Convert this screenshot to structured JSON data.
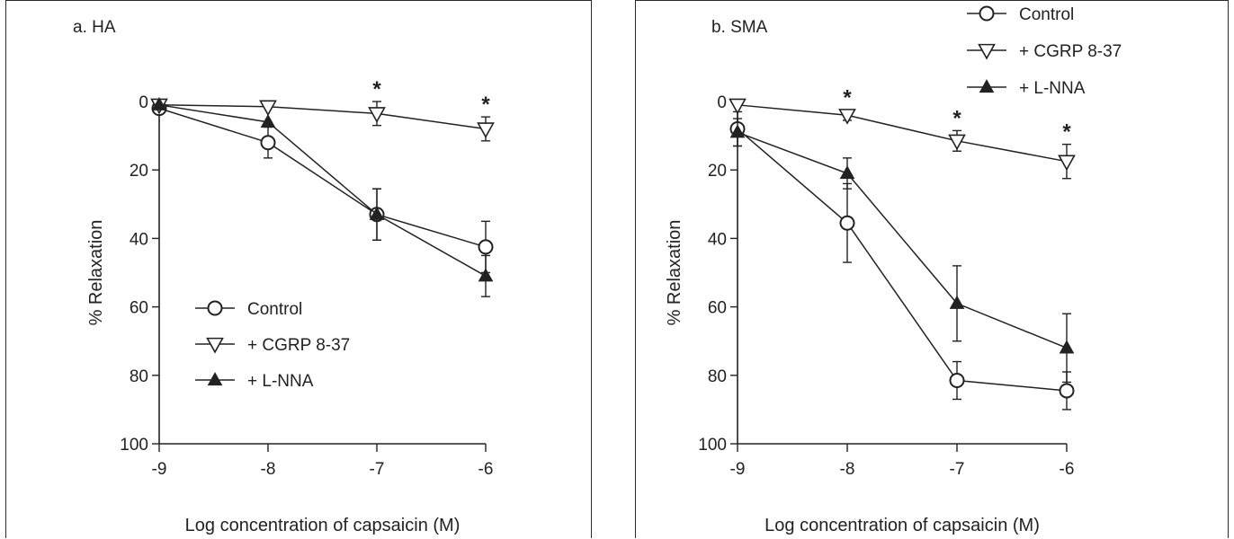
{
  "chart_data": [
    {
      "type": "line",
      "title": "a. HA",
      "xlabel": "Log concentration of capsaicin (M)",
      "ylabel": "% Relaxation",
      "x": [
        -9,
        -8,
        -7,
        -6
      ],
      "xticks": [
        "-9",
        "-8",
        "-7",
        "-6"
      ],
      "yticks": [
        "0",
        "20",
        "40",
        "60",
        "80",
        "100"
      ],
      "xlim": [
        -9,
        -6
      ],
      "ylim": [
        0,
        100
      ],
      "y_inverted": true,
      "grid": false,
      "legend_position": "lower-left",
      "series": [
        {
          "name": "Control",
          "marker": "open-circle",
          "values": [
            2,
            12,
            33,
            42.5
          ],
          "errors": [
            0,
            4.5,
            7.5,
            7.5
          ]
        },
        {
          "name": "+ CGRP 8-37",
          "marker": "open-triangle-down",
          "values": [
            1,
            1.5,
            3.5,
            8
          ],
          "errors": [
            0,
            0,
            3.5,
            3.5
          ]
        },
        {
          "name": "+ L-NNA",
          "marker": "filled-triangle-up",
          "values": [
            1,
            6,
            33,
            51
          ],
          "errors": [
            0,
            0,
            7.5,
            6
          ]
        }
      ],
      "annotations": [
        {
          "text": "*",
          "x": -7,
          "series": "+ CGRP 8-37"
        },
        {
          "text": "*",
          "x": -6,
          "series": "+ CGRP 8-37"
        }
      ]
    },
    {
      "type": "line",
      "title": "b. SMA",
      "xlabel": "Log concentration of capsaicin (M)",
      "ylabel": "% Relaxation",
      "x": [
        -9,
        -8,
        -7,
        -6
      ],
      "xticks": [
        "-9",
        "-8",
        "-7",
        "-6"
      ],
      "yticks": [
        "0",
        "20",
        "40",
        "60",
        "80",
        "100"
      ],
      "xlim": [
        -9,
        -6
      ],
      "ylim": [
        0,
        100
      ],
      "y_inverted": true,
      "grid": false,
      "legend_position": "top-right",
      "series": [
        {
          "name": "Control",
          "marker": "open-circle",
          "values": [
            8,
            35.5,
            81.5,
            84.5
          ],
          "errors": [
            5,
            11.5,
            5.5,
            5.5
          ]
        },
        {
          "name": "+ CGRP 8-37",
          "marker": "open-triangle-down",
          "values": [
            1,
            4,
            11.5,
            17.5
          ],
          "errors": [
            0,
            1.5,
            3,
            5
          ]
        },
        {
          "name": "+ L-NNA",
          "marker": "filled-triangle-up",
          "values": [
            9,
            21,
            59,
            72
          ],
          "errors": [
            4,
            4.5,
            11,
            10
          ]
        }
      ],
      "annotations": [
        {
          "text": "*",
          "x": -8,
          "series": "+ CGRP 8-37"
        },
        {
          "text": "*",
          "x": -7,
          "series": "+ CGRP 8-37"
        },
        {
          "text": "*",
          "x": -6,
          "series": "+ CGRP 8-37"
        }
      ]
    }
  ]
}
